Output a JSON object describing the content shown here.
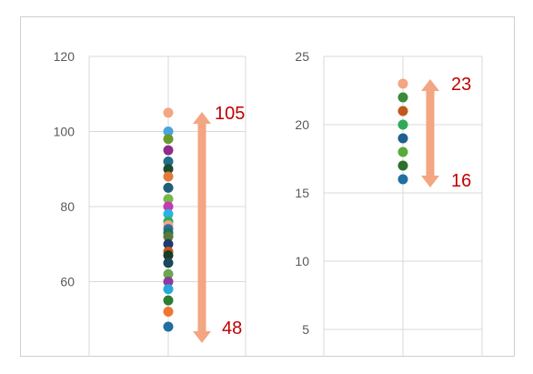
{
  "chart_data": [
    {
      "type": "scatter",
      "ylim": [
        40,
        120
      ],
      "yticks": [
        60,
        80,
        100,
        120
      ],
      "grid": true,
      "points": [
        {
          "y": 105,
          "color": "#f4a582"
        },
        {
          "y": 100,
          "color": "#4aa3df"
        },
        {
          "y": 98,
          "color": "#6a9a2f"
        },
        {
          "y": 95,
          "color": "#8e2c8e"
        },
        {
          "y": 92,
          "color": "#1f6f8b"
        },
        {
          "y": 90,
          "color": "#1a4d2e"
        },
        {
          "y": 88,
          "color": "#e07b39"
        },
        {
          "y": 85,
          "color": "#1f5f7a"
        },
        {
          "y": 82,
          "color": "#7ab648"
        },
        {
          "y": 80,
          "color": "#c43ab5"
        },
        {
          "y": 78,
          "color": "#27b5e0"
        },
        {
          "y": 76,
          "color": "#3aaa5a"
        },
        {
          "y": 75,
          "color": "#f4a582"
        },
        {
          "y": 74,
          "color": "#2f6f9f"
        },
        {
          "y": 73,
          "color": "#1f6f5f"
        },
        {
          "y": 72,
          "color": "#5a7a3a"
        },
        {
          "y": 70,
          "color": "#1f3a6f"
        },
        {
          "y": 68,
          "color": "#c0581a"
        },
        {
          "y": 67,
          "color": "#1a3a2a"
        },
        {
          "y": 65,
          "color": "#1a4a5a"
        },
        {
          "y": 62,
          "color": "#6aa84f"
        },
        {
          "y": 60,
          "color": "#8e3a9e"
        },
        {
          "y": 58,
          "color": "#2aa7d8"
        },
        {
          "y": 55,
          "color": "#2e7d32"
        },
        {
          "y": 52,
          "color": "#ee7733"
        },
        {
          "y": 48,
          "color": "#1f6f9f"
        }
      ],
      "annotations": {
        "max_label": "105",
        "min_label": "48",
        "arrow_color": "#f4a582"
      }
    },
    {
      "type": "scatter",
      "ylim": [
        3,
        25
      ],
      "yticks": [
        5,
        10,
        15,
        20,
        25
      ],
      "grid": true,
      "points": [
        {
          "y": 23,
          "color": "#f4a582"
        },
        {
          "y": 22,
          "color": "#3a8a3a"
        },
        {
          "y": 21,
          "color": "#c0581a"
        },
        {
          "y": 20,
          "color": "#2eaa5a"
        },
        {
          "y": 19,
          "color": "#1f5f8f"
        },
        {
          "y": 18,
          "color": "#5aaa3a"
        },
        {
          "y": 17,
          "color": "#2e6f2e"
        },
        {
          "y": 16,
          "color": "#1f6f9f"
        }
      ],
      "annotations": {
        "max_label": "23",
        "min_label": "16",
        "arrow_color": "#f4a582"
      }
    }
  ]
}
